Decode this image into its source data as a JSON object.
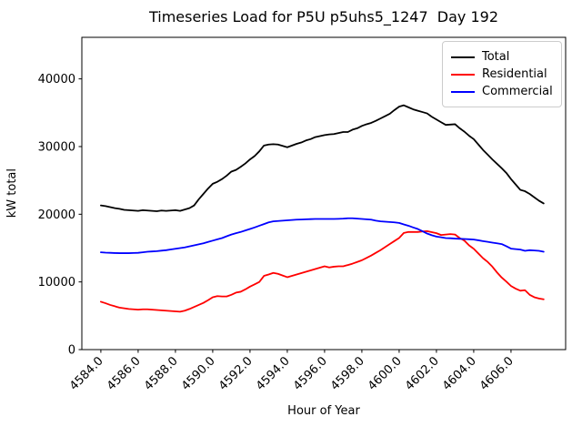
{
  "chart_data": {
    "type": "line",
    "title": "Timeseries Load for P5U p5uhs5_1247  Day 192",
    "xlabel": "Hour of Year",
    "ylabel": "kW total",
    "xlim": [
      4582.98,
      4608.93
    ],
    "ylim": [
      0,
      46140
    ],
    "grid": false,
    "legend_position": "upper right",
    "xticks": [
      4584,
      4586,
      4588,
      4590,
      4592,
      4594,
      4596,
      4598,
      4600,
      4602,
      4604,
      4606
    ],
    "xtick_labels": [
      "4584.0",
      "4586.0",
      "4588.0",
      "4590.0",
      "4592.0",
      "4594.0",
      "4596.0",
      "4598.0",
      "4600.0",
      "4602.0",
      "4604.0",
      "4606.0"
    ],
    "yticks": [
      0,
      10000,
      20000,
      30000,
      40000
    ],
    "ytick_labels": [
      "0",
      "10000",
      "20000",
      "30000",
      "40000"
    ],
    "series": [
      {
        "name": "Total",
        "color": "#000000",
        "points": [
          [
            4584.0,
            21300
          ],
          [
            4584.25,
            21200
          ],
          [
            4584.5,
            21050
          ],
          [
            4584.75,
            20900
          ],
          [
            4585.0,
            20800
          ],
          [
            4585.25,
            20650
          ],
          [
            4585.5,
            20600
          ],
          [
            4585.75,
            20550
          ],
          [
            4586.0,
            20500
          ],
          [
            4586.25,
            20600
          ],
          [
            4586.5,
            20550
          ],
          [
            4586.75,
            20500
          ],
          [
            4587.0,
            20450
          ],
          [
            4587.25,
            20550
          ],
          [
            4587.5,
            20500
          ],
          [
            4587.75,
            20550
          ],
          [
            4588.0,
            20600
          ],
          [
            4588.25,
            20500
          ],
          [
            4588.5,
            20700
          ],
          [
            4588.75,
            20900
          ],
          [
            4589.0,
            21300
          ],
          [
            4589.25,
            22200
          ],
          [
            4589.5,
            23000
          ],
          [
            4589.75,
            23800
          ],
          [
            4590.0,
            24500
          ],
          [
            4590.25,
            24800
          ],
          [
            4590.5,
            25200
          ],
          [
            4590.75,
            25700
          ],
          [
            4591.0,
            26300
          ],
          [
            4591.25,
            26550
          ],
          [
            4591.5,
            27000
          ],
          [
            4591.75,
            27500
          ],
          [
            4592.0,
            28100
          ],
          [
            4592.25,
            28600
          ],
          [
            4592.5,
            29300
          ],
          [
            4592.75,
            30150
          ],
          [
            4593.0,
            30300
          ],
          [
            4593.25,
            30350
          ],
          [
            4593.5,
            30300
          ],
          [
            4593.75,
            30100
          ],
          [
            4594.0,
            29900
          ],
          [
            4594.25,
            30150
          ],
          [
            4594.5,
            30400
          ],
          [
            4594.75,
            30600
          ],
          [
            4595.0,
            30900
          ],
          [
            4595.25,
            31100
          ],
          [
            4595.5,
            31400
          ],
          [
            4595.75,
            31550
          ],
          [
            4596.0,
            31700
          ],
          [
            4596.25,
            31800
          ],
          [
            4596.5,
            31850
          ],
          [
            4596.75,
            32000
          ],
          [
            4597.0,
            32150
          ],
          [
            4597.25,
            32150
          ],
          [
            4597.5,
            32500
          ],
          [
            4597.75,
            32700
          ],
          [
            4598.0,
            33050
          ],
          [
            4598.25,
            33300
          ],
          [
            4598.5,
            33500
          ],
          [
            4598.75,
            33800
          ],
          [
            4599.0,
            34150
          ],
          [
            4599.25,
            34500
          ],
          [
            4599.5,
            34850
          ],
          [
            4599.75,
            35400
          ],
          [
            4600.0,
            35900
          ],
          [
            4600.25,
            36100
          ],
          [
            4600.5,
            35800
          ],
          [
            4600.75,
            35500
          ],
          [
            4601.0,
            35300
          ],
          [
            4601.25,
            35100
          ],
          [
            4601.5,
            34900
          ],
          [
            4601.75,
            34400
          ],
          [
            4602.0,
            34000
          ],
          [
            4602.25,
            33600
          ],
          [
            4602.5,
            33200
          ],
          [
            4602.75,
            33250
          ],
          [
            4603.0,
            33300
          ],
          [
            4603.25,
            32700
          ],
          [
            4603.5,
            32200
          ],
          [
            4603.75,
            31600
          ],
          [
            4604.0,
            31100
          ],
          [
            4604.25,
            30300
          ],
          [
            4604.5,
            29500
          ],
          [
            4604.75,
            28800
          ],
          [
            4605.0,
            28100
          ],
          [
            4605.25,
            27450
          ],
          [
            4605.5,
            26800
          ],
          [
            4605.75,
            26100
          ],
          [
            4606.0,
            25200
          ],
          [
            4606.25,
            24400
          ],
          [
            4606.5,
            23600
          ],
          [
            4606.75,
            23400
          ],
          [
            4607.0,
            23000
          ],
          [
            4607.25,
            22500
          ],
          [
            4607.5,
            22000
          ],
          [
            4607.75,
            21600
          ]
        ]
      },
      {
        "name": "Residential",
        "color": "#ff0000",
        "points": [
          [
            4584.0,
            7070
          ],
          [
            4584.25,
            6850
          ],
          [
            4584.5,
            6600
          ],
          [
            4584.75,
            6400
          ],
          [
            4585.0,
            6200
          ],
          [
            4585.25,
            6100
          ],
          [
            4585.5,
            6000
          ],
          [
            4585.75,
            5950
          ],
          [
            4586.0,
            5900
          ],
          [
            4586.25,
            5950
          ],
          [
            4586.5,
            5950
          ],
          [
            4586.75,
            5900
          ],
          [
            4587.0,
            5850
          ],
          [
            4587.25,
            5800
          ],
          [
            4587.5,
            5750
          ],
          [
            4587.75,
            5700
          ],
          [
            4588.0,
            5650
          ],
          [
            4588.25,
            5600
          ],
          [
            4588.5,
            5750
          ],
          [
            4588.75,
            6000
          ],
          [
            4589.0,
            6300
          ],
          [
            4589.25,
            6600
          ],
          [
            4589.5,
            6900
          ],
          [
            4589.75,
            7300
          ],
          [
            4590.0,
            7740
          ],
          [
            4590.25,
            7900
          ],
          [
            4590.5,
            7850
          ],
          [
            4590.75,
            7850
          ],
          [
            4591.0,
            8100
          ],
          [
            4591.25,
            8420
          ],
          [
            4591.5,
            8550
          ],
          [
            4591.75,
            8900
          ],
          [
            4592.0,
            9310
          ],
          [
            4592.25,
            9650
          ],
          [
            4592.5,
            10000
          ],
          [
            4592.75,
            10890
          ],
          [
            4593.0,
            11100
          ],
          [
            4593.25,
            11330
          ],
          [
            4593.5,
            11200
          ],
          [
            4593.75,
            10950
          ],
          [
            4594.0,
            10700
          ],
          [
            4594.25,
            10900
          ],
          [
            4594.5,
            11100
          ],
          [
            4594.75,
            11300
          ],
          [
            4595.0,
            11500
          ],
          [
            4595.25,
            11700
          ],
          [
            4595.5,
            11900
          ],
          [
            4595.75,
            12100
          ],
          [
            4596.0,
            12310
          ],
          [
            4596.25,
            12140
          ],
          [
            4596.5,
            12250
          ],
          [
            4596.75,
            12310
          ],
          [
            4597.0,
            12310
          ],
          [
            4597.25,
            12500
          ],
          [
            4597.5,
            12700
          ],
          [
            4597.75,
            12950
          ],
          [
            4598.0,
            13200
          ],
          [
            4598.25,
            13550
          ],
          [
            4598.5,
            13900
          ],
          [
            4598.75,
            14300
          ],
          [
            4599.0,
            14700
          ],
          [
            4599.25,
            15150
          ],
          [
            4599.5,
            15600
          ],
          [
            4599.75,
            16050
          ],
          [
            4600.0,
            16500
          ],
          [
            4600.25,
            17240
          ],
          [
            4600.5,
            17380
          ],
          [
            4600.75,
            17380
          ],
          [
            4601.0,
            17380
          ],
          [
            4601.25,
            17450
          ],
          [
            4601.5,
            17500
          ],
          [
            4601.75,
            17350
          ],
          [
            4602.0,
            17200
          ],
          [
            4602.25,
            16930
          ],
          [
            4602.5,
            17000
          ],
          [
            4602.75,
            17070
          ],
          [
            4603.0,
            17000
          ],
          [
            4603.25,
            16480
          ],
          [
            4603.5,
            16100
          ],
          [
            4603.75,
            15400
          ],
          [
            4604.0,
            14900
          ],
          [
            4604.25,
            14200
          ],
          [
            4604.5,
            13500
          ],
          [
            4604.75,
            12950
          ],
          [
            4605.0,
            12250
          ],
          [
            4605.25,
            11400
          ],
          [
            4605.5,
            10650
          ],
          [
            4605.75,
            10050
          ],
          [
            4606.0,
            9400
          ],
          [
            4606.25,
            9000
          ],
          [
            4606.5,
            8700
          ],
          [
            4606.75,
            8780
          ],
          [
            4607.0,
            8100
          ],
          [
            4607.25,
            7740
          ],
          [
            4607.5,
            7550
          ],
          [
            4607.75,
            7430
          ]
        ]
      },
      {
        "name": "Commercial",
        "color": "#0000ff",
        "points": [
          [
            4584.0,
            14380
          ],
          [
            4584.25,
            14330
          ],
          [
            4584.5,
            14300
          ],
          [
            4584.75,
            14270
          ],
          [
            4585.0,
            14250
          ],
          [
            4585.25,
            14250
          ],
          [
            4585.5,
            14250
          ],
          [
            4585.75,
            14280
          ],
          [
            4586.0,
            14300
          ],
          [
            4586.25,
            14380
          ],
          [
            4586.5,
            14460
          ],
          [
            4586.75,
            14500
          ],
          [
            4587.0,
            14550
          ],
          [
            4587.25,
            14620
          ],
          [
            4587.5,
            14690
          ],
          [
            4587.75,
            14800
          ],
          [
            4588.0,
            14900
          ],
          [
            4588.25,
            15000
          ],
          [
            4588.5,
            15100
          ],
          [
            4588.75,
            15250
          ],
          [
            4589.0,
            15400
          ],
          [
            4589.25,
            15550
          ],
          [
            4589.5,
            15700
          ],
          [
            4589.75,
            15900
          ],
          [
            4590.0,
            16100
          ],
          [
            4590.25,
            16300
          ],
          [
            4590.5,
            16480
          ],
          [
            4590.75,
            16750
          ],
          [
            4591.0,
            17000
          ],
          [
            4591.25,
            17200
          ],
          [
            4591.5,
            17380
          ],
          [
            4591.75,
            17600
          ],
          [
            4592.0,
            17820
          ],
          [
            4592.25,
            18050
          ],
          [
            4592.5,
            18300
          ],
          [
            4592.75,
            18550
          ],
          [
            4593.0,
            18800
          ],
          [
            4593.25,
            18950
          ],
          [
            4593.5,
            19000
          ],
          [
            4593.75,
            19050
          ],
          [
            4594.0,
            19100
          ],
          [
            4594.25,
            19150
          ],
          [
            4594.5,
            19200
          ],
          [
            4594.75,
            19220
          ],
          [
            4595.0,
            19250
          ],
          [
            4595.25,
            19280
          ],
          [
            4595.5,
            19300
          ],
          [
            4595.75,
            19300
          ],
          [
            4596.0,
            19300
          ],
          [
            4596.25,
            19300
          ],
          [
            4596.5,
            19300
          ],
          [
            4596.75,
            19320
          ],
          [
            4597.0,
            19350
          ],
          [
            4597.25,
            19400
          ],
          [
            4597.5,
            19400
          ],
          [
            4597.75,
            19350
          ],
          [
            4598.0,
            19300
          ],
          [
            4598.25,
            19250
          ],
          [
            4598.5,
            19200
          ],
          [
            4598.75,
            19050
          ],
          [
            4599.0,
            18950
          ],
          [
            4599.25,
            18900
          ],
          [
            4599.5,
            18850
          ],
          [
            4599.75,
            18800
          ],
          [
            4600.0,
            18720
          ],
          [
            4600.25,
            18500
          ],
          [
            4600.5,
            18300
          ],
          [
            4600.75,
            18050
          ],
          [
            4601.0,
            17820
          ],
          [
            4601.25,
            17500
          ],
          [
            4601.5,
            17150
          ],
          [
            4601.75,
            16900
          ],
          [
            4602.0,
            16700
          ],
          [
            4602.25,
            16600
          ],
          [
            4602.5,
            16480
          ],
          [
            4602.75,
            16450
          ],
          [
            4603.0,
            16400
          ],
          [
            4603.25,
            16370
          ],
          [
            4603.5,
            16340
          ],
          [
            4603.75,
            16300
          ],
          [
            4604.0,
            16260
          ],
          [
            4604.25,
            16150
          ],
          [
            4604.5,
            16030
          ],
          [
            4604.75,
            15920
          ],
          [
            4605.0,
            15810
          ],
          [
            4605.25,
            15700
          ],
          [
            4605.5,
            15590
          ],
          [
            4605.75,
            15270
          ],
          [
            4606.0,
            14920
          ],
          [
            4606.25,
            14850
          ],
          [
            4606.5,
            14780
          ],
          [
            4606.75,
            14600
          ],
          [
            4607.0,
            14690
          ],
          [
            4607.25,
            14650
          ],
          [
            4607.5,
            14600
          ],
          [
            4607.75,
            14460
          ]
        ]
      }
    ]
  }
}
